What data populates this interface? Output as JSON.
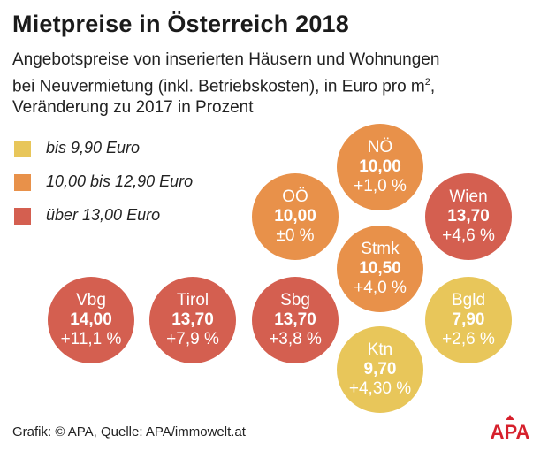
{
  "title": "Mietpreise in Österreich 2018",
  "subtitle": {
    "line1": "Angebotspreise von inserierten Häusern und Wohnungen",
    "line2": "bei Neuvermietung (inkl. Betriebskosten), in Euro pro m",
    "line2_sup": "2",
    "line2_end": ",",
    "line3": "Veränderung zu 2017 in Prozent"
  },
  "legend": [
    {
      "label": "bis 9,90 Euro",
      "color": "#E8C65A"
    },
    {
      "label": "10,00 bis 12,90 Euro",
      "color": "#E8914A"
    },
    {
      "label": "über 13,00 Euro",
      "color": "#D45F50"
    }
  ],
  "chart_data": {
    "type": "bubble",
    "unit": "Euro pro m²",
    "points": [
      {
        "region": "NÖ",
        "price_label": "10,00",
        "change_label": "+1,0 %",
        "price": 10.0,
        "change": 1.0,
        "category": 1
      },
      {
        "region": "OÖ",
        "price_label": "10,00",
        "change_label": "±0 %",
        "price": 10.0,
        "change": 0.0,
        "category": 1
      },
      {
        "region": "Wien",
        "price_label": "13,70",
        "change_label": "+4,6 %",
        "price": 13.7,
        "change": 4.6,
        "category": 2
      },
      {
        "region": "Stmk",
        "price_label": "10,50",
        "change_label": "+4,0 %",
        "price": 10.5,
        "change": 4.0,
        "category": 1
      },
      {
        "region": "Vbg",
        "price_label": "14,00",
        "change_label": "+11,1 %",
        "price": 14.0,
        "change": 11.1,
        "category": 2
      },
      {
        "region": "Tirol",
        "price_label": "13,70",
        "change_label": "+7,9 %",
        "price": 13.7,
        "change": 7.9,
        "category": 2
      },
      {
        "region": "Sbg",
        "price_label": "13,70",
        "change_label": "+3,8 %",
        "price": 13.7,
        "change": 3.8,
        "category": 2
      },
      {
        "region": "Bgld",
        "price_label": "7,90",
        "change_label": "+2,6 %",
        "price": 7.9,
        "change": 2.6,
        "category": 0
      },
      {
        "region": "Ktn",
        "price_label": "9,70",
        "change_label": "+4,30 %",
        "price": 9.7,
        "change": 4.3,
        "category": 0
      }
    ]
  },
  "footer": "Grafik: © APA, Quelle: APA/immowelt.at",
  "logo": {
    "text": "APA",
    "color": "#D6202C"
  }
}
